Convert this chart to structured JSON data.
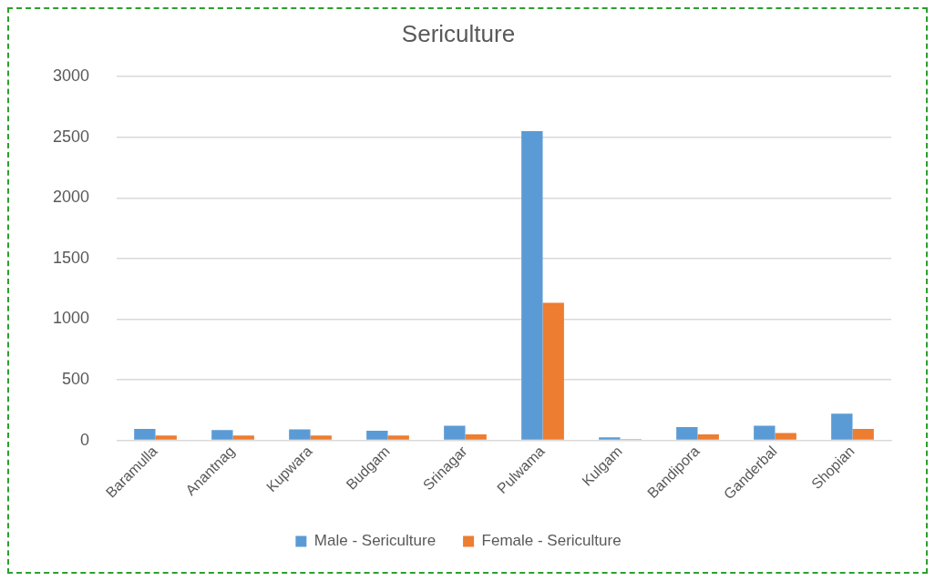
{
  "chart_data": {
    "type": "bar",
    "title": "Sericulture",
    "categories": [
      "Baramulla",
      "Anantnag",
      "Kupwara",
      "Budgam",
      "Srinagar",
      "Pulwama",
      "Kulgam",
      "Bandipora",
      "Ganderbal",
      "Shopian"
    ],
    "series": [
      {
        "name": "Male - Sericulture",
        "color": "#5b9bd5",
        "values": [
          95,
          85,
          90,
          80,
          120,
          2550,
          25,
          110,
          120,
          220
        ]
      },
      {
        "name": "Female - Sericulture",
        "color": "#ed7d31",
        "values": [
          40,
          40,
          40,
          40,
          50,
          1135,
          10,
          50,
          60,
          95
        ]
      }
    ],
    "ylim": [
      0,
      3000
    ],
    "yticks": [
      0,
      500,
      1000,
      1500,
      2000,
      2500,
      3000
    ],
    "grid": "y",
    "legend": "bottom"
  }
}
